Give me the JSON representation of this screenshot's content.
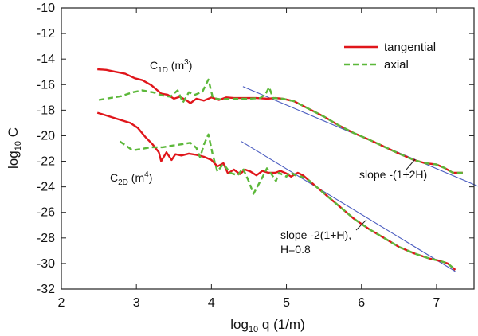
{
  "chart_data": {
    "type": "line",
    "xlabel_main": "log",
    "xlabel_sub": "10",
    "xlabel_rest": " q (1/m)",
    "ylabel_main": "log",
    "ylabel_sub": "10",
    "ylabel_rest": " C",
    "xlim": [
      2,
      7.5
    ],
    "ylim": [
      -32,
      -10
    ],
    "xticks": [
      2,
      3,
      4,
      5,
      6,
      7
    ],
    "yticks": [
      -32,
      -30,
      -28,
      -26,
      -24,
      -22,
      -20,
      -18,
      -16,
      -14,
      -12,
      -10
    ],
    "legend": {
      "position": "top-right",
      "entries": [
        {
          "label": "tangential",
          "color": "#e0161b",
          "dash": "solid"
        },
        {
          "label": "axial",
          "color": "#5cb83a",
          "dash": "dashed"
        }
      ]
    },
    "series": [
      {
        "name": "tangential C1D",
        "color": "#e0161b",
        "dash": "solid",
        "points": [
          [
            2.48,
            -14.8
          ],
          [
            2.6,
            -14.85
          ],
          [
            2.72,
            -15.0
          ],
          [
            2.85,
            -15.15
          ],
          [
            2.98,
            -15.5
          ],
          [
            3.08,
            -15.65
          ],
          [
            3.2,
            -16.05
          ],
          [
            3.33,
            -16.7
          ],
          [
            3.42,
            -16.8
          ],
          [
            3.5,
            -17.1
          ],
          [
            3.58,
            -16.95
          ],
          [
            3.66,
            -17.2
          ],
          [
            3.72,
            -17.45
          ],
          [
            3.8,
            -17.1
          ],
          [
            3.9,
            -17.25
          ],
          [
            4.0,
            -17.0
          ],
          [
            4.1,
            -17.2
          ],
          [
            4.2,
            -17.0
          ],
          [
            4.3,
            -17.05
          ],
          [
            4.45,
            -17.05
          ],
          [
            4.6,
            -17.05
          ],
          [
            4.75,
            -17.1
          ],
          [
            4.85,
            -17.05
          ],
          [
            4.95,
            -17.1
          ],
          [
            5.1,
            -17.3
          ],
          [
            5.3,
            -17.9
          ],
          [
            5.5,
            -18.5
          ],
          [
            5.7,
            -19.2
          ],
          [
            5.9,
            -19.8
          ],
          [
            6.1,
            -20.3
          ],
          [
            6.3,
            -20.85
          ],
          [
            6.5,
            -21.4
          ],
          [
            6.7,
            -21.9
          ],
          [
            6.85,
            -22.15
          ],
          [
            7.0,
            -22.25
          ],
          [
            7.1,
            -22.5
          ],
          [
            7.22,
            -22.9
          ],
          [
            7.35,
            -22.9
          ]
        ]
      },
      {
        "name": "axial C1D",
        "color": "#5cb83a",
        "dash": "dashed",
        "points": [
          [
            2.5,
            -17.2
          ],
          [
            2.65,
            -17.05
          ],
          [
            2.8,
            -16.9
          ],
          [
            2.95,
            -16.6
          ],
          [
            3.08,
            -16.45
          ],
          [
            3.22,
            -16.6
          ],
          [
            3.35,
            -16.85
          ],
          [
            3.45,
            -16.95
          ],
          [
            3.55,
            -16.45
          ],
          [
            3.62,
            -17.4
          ],
          [
            3.7,
            -16.6
          ],
          [
            3.78,
            -16.8
          ],
          [
            3.88,
            -16.55
          ],
          [
            3.96,
            -15.6
          ],
          [
            4.02,
            -17.05
          ],
          [
            4.12,
            -17.15
          ],
          [
            4.3,
            -17.1
          ],
          [
            4.5,
            -17.1
          ],
          [
            4.65,
            -17.05
          ],
          [
            4.72,
            -16.75
          ],
          [
            4.77,
            -16.2
          ],
          [
            4.82,
            -17.05
          ],
          [
            4.95,
            -17.1
          ],
          [
            5.1,
            -17.3
          ],
          [
            5.3,
            -17.9
          ],
          [
            5.5,
            -18.5
          ],
          [
            5.7,
            -19.2
          ],
          [
            5.9,
            -19.8
          ],
          [
            6.1,
            -20.3
          ],
          [
            6.3,
            -20.85
          ],
          [
            6.5,
            -21.4
          ],
          [
            6.7,
            -21.9
          ],
          [
            6.85,
            -22.15
          ],
          [
            7.0,
            -22.25
          ],
          [
            7.1,
            -22.5
          ],
          [
            7.22,
            -22.9
          ],
          [
            7.35,
            -22.9
          ]
        ]
      },
      {
        "name": "tangential C2D",
        "color": "#e0161b",
        "dash": "solid",
        "points": [
          [
            2.48,
            -18.2
          ],
          [
            2.62,
            -18.45
          ],
          [
            2.78,
            -18.75
          ],
          [
            2.92,
            -19.0
          ],
          [
            3.02,
            -19.4
          ],
          [
            3.12,
            -20.1
          ],
          [
            3.22,
            -20.7
          ],
          [
            3.3,
            -21.3
          ],
          [
            3.33,
            -22.0
          ],
          [
            3.4,
            -21.3
          ],
          [
            3.47,
            -21.9
          ],
          [
            3.52,
            -21.45
          ],
          [
            3.6,
            -21.55
          ],
          [
            3.7,
            -21.4
          ],
          [
            3.8,
            -21.5
          ],
          [
            3.9,
            -21.65
          ],
          [
            4.0,
            -21.9
          ],
          [
            4.08,
            -22.4
          ],
          [
            4.16,
            -22.15
          ],
          [
            4.22,
            -22.95
          ],
          [
            4.3,
            -22.65
          ],
          [
            4.38,
            -23.0
          ],
          [
            4.45,
            -22.65
          ],
          [
            4.52,
            -22.8
          ],
          [
            4.6,
            -23.1
          ],
          [
            4.68,
            -22.75
          ],
          [
            4.76,
            -22.9
          ],
          [
            4.85,
            -22.9
          ],
          [
            4.92,
            -22.75
          ],
          [
            5.0,
            -22.95
          ],
          [
            5.06,
            -23.2
          ],
          [
            5.15,
            -22.9
          ],
          [
            5.22,
            -23.1
          ],
          [
            5.3,
            -23.5
          ],
          [
            5.5,
            -24.5
          ],
          [
            5.7,
            -25.5
          ],
          [
            5.9,
            -26.5
          ],
          [
            6.1,
            -27.3
          ],
          [
            6.3,
            -28.0
          ],
          [
            6.5,
            -28.7
          ],
          [
            6.7,
            -29.2
          ],
          [
            6.9,
            -29.6
          ],
          [
            7.05,
            -29.8
          ],
          [
            7.15,
            -30.0
          ],
          [
            7.25,
            -30.5
          ]
        ]
      },
      {
        "name": "axial C2D",
        "color": "#5cb83a",
        "dash": "dashed",
        "points": [
          [
            2.78,
            -20.45
          ],
          [
            2.88,
            -20.85
          ],
          [
            2.95,
            -21.15
          ],
          [
            3.05,
            -21.05
          ],
          [
            3.2,
            -20.9
          ],
          [
            3.35,
            -20.9
          ],
          [
            3.5,
            -20.75
          ],
          [
            3.62,
            -20.65
          ],
          [
            3.72,
            -20.55
          ],
          [
            3.8,
            -20.95
          ],
          [
            3.85,
            -21.7
          ],
          [
            3.9,
            -20.7
          ],
          [
            3.96,
            -19.9
          ],
          [
            4.02,
            -21.55
          ],
          [
            4.08,
            -22.8
          ],
          [
            4.16,
            -22.2
          ],
          [
            4.25,
            -22.9
          ],
          [
            4.35,
            -23.1
          ],
          [
            4.42,
            -22.55
          ],
          [
            4.5,
            -23.6
          ],
          [
            4.56,
            -24.55
          ],
          [
            4.62,
            -23.9
          ],
          [
            4.68,
            -23.25
          ],
          [
            4.74,
            -22.55
          ],
          [
            4.8,
            -23.0
          ],
          [
            4.86,
            -23.55
          ],
          [
            4.9,
            -22.9
          ],
          [
            4.95,
            -23.05
          ],
          [
            5.0,
            -23.2
          ],
          [
            5.05,
            -22.85
          ],
          [
            5.12,
            -23.1
          ],
          [
            5.2,
            -23.2
          ],
          [
            5.3,
            -23.5
          ],
          [
            5.5,
            -24.5
          ],
          [
            5.7,
            -25.5
          ],
          [
            5.9,
            -26.5
          ],
          [
            6.1,
            -27.3
          ],
          [
            6.3,
            -28.0
          ],
          [
            6.5,
            -28.7
          ],
          [
            6.7,
            -29.2
          ],
          [
            6.9,
            -29.6
          ],
          [
            7.05,
            -29.8
          ],
          [
            7.15,
            -30.0
          ],
          [
            7.25,
            -30.5
          ]
        ]
      }
    ],
    "fit_lines": [
      {
        "name": "slope -(1+2H)",
        "color": "#4a5cc0",
        "points": [
          [
            4.42,
            -16.15
          ],
          [
            7.55,
            -23.95
          ]
        ]
      },
      {
        "name": "slope -2(1+H)",
        "color": "#4a5cc0",
        "points": [
          [
            4.4,
            -20.45
          ],
          [
            7.25,
            -30.62
          ]
        ]
      }
    ],
    "annotations": {
      "c1d": {
        "main": "C",
        "sub": "1D",
        "unit_open": " (m",
        "sup": "3",
        "unit_close": ")"
      },
      "c2d": {
        "main": "C",
        "sub": "2D",
        "unit_open": " (m",
        "sup": "4",
        "unit_close": ")"
      },
      "slope1": "slope -(1+2H)",
      "slope2_line1": "slope -2(1+H),",
      "slope2_line2": "H=0.8"
    }
  }
}
